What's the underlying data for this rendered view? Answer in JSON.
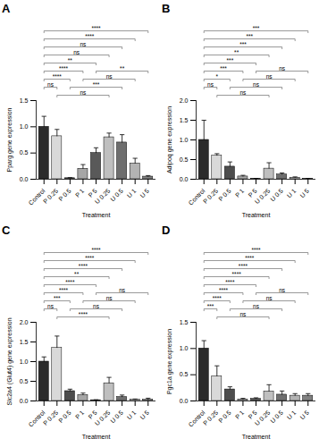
{
  "chart_data": [
    {
      "type": "bar",
      "title": "A",
      "categories": [
        "Control",
        "P 0.25",
        "P 0.5",
        "P 1",
        "P 5",
        "U 0.25",
        "U 0.5",
        "U 1",
        "U 5"
      ],
      "values": [
        1.0,
        0.82,
        0.02,
        0.2,
        0.5,
        0.8,
        0.7,
        0.3,
        0.05
      ],
      "errors": [
        0.2,
        0.13,
        0.01,
        0.08,
        0.1,
        0.08,
        0.15,
        0.1,
        0.02
      ],
      "colors": [
        "#2b2b2b",
        "#d9d9d9",
        "#4d4d4d",
        "#a6a6a6",
        "#595959",
        "#bfbfbf",
        "#6e6e6e",
        "#b3b3b3",
        "#808080"
      ],
      "ylim": [
        0,
        1.5
      ],
      "yticks": [
        {
          "value": 0,
          "label": "0.0"
        },
        0.5,
        {
          "value": 1,
          "label": "1.0"
        },
        1.5
      ],
      "x_label": "Treatment",
      "y_label": "Pparg gene expression",
      "comparisons": [
        {
          "from": "P 0.25",
          "to": "U 0.25",
          "label": "ns"
        },
        {
          "from": "P 0.5",
          "to": "U 0.5",
          "label": "***"
        },
        {
          "from": "P 1",
          "to": "U 1",
          "label": "ns"
        },
        {
          "from": "P 5",
          "to": "U 5",
          "label": "**"
        },
        {
          "from": "Control",
          "to": "P 0.25",
          "label": "ns"
        },
        {
          "from": "Control",
          "to": "P 0.5",
          "label": "****"
        },
        {
          "from": "Control",
          "to": "P 1",
          "label": "****"
        },
        {
          "from": "Control",
          "to": "P 5",
          "label": "**"
        },
        {
          "from": "Control",
          "to": "U 0.25",
          "label": "ns"
        },
        {
          "from": "Control",
          "to": "U 0.5",
          "label": "ns"
        },
        {
          "from": "Control",
          "to": "U 1",
          "label": "****"
        },
        {
          "from": "Control",
          "to": "U 5",
          "label": "****"
        }
      ]
    },
    {
      "type": "bar",
      "title": "B",
      "categories": [
        "Control",
        "P 0.25",
        "P 0.5",
        "P 1",
        "P 5",
        "U 0.25",
        "U 0.5",
        "U 1",
        "U 5"
      ],
      "values": [
        1.0,
        0.6,
        0.32,
        0.07,
        0.01,
        0.27,
        0.12,
        0.04,
        0.01
      ],
      "errors": [
        0.5,
        0.05,
        0.12,
        0.03,
        0.01,
        0.15,
        0.04,
        0.02,
        0.01
      ],
      "colors": [
        "#2b2b2b",
        "#d9d9d9",
        "#4d4d4d",
        "#a6a6a6",
        "#595959",
        "#bfbfbf",
        "#6e6e6e",
        "#b3b3b3",
        "#808080"
      ],
      "ylim": [
        0,
        2
      ],
      "yticks": [
        {
          "value": 0,
          "label": "0.0"
        },
        0.5,
        {
          "value": 1,
          "label": "1.0"
        },
        1.5,
        {
          "value": 2,
          "label": "2.0"
        }
      ],
      "x_label": "Treatment",
      "y_label": "Adipoq gene expression",
      "comparisons": [
        {
          "from": "P 0.25",
          "to": "U 0.25",
          "label": "ns"
        },
        {
          "from": "P 0.5",
          "to": "U 0.5",
          "label": "ns"
        },
        {
          "from": "P 1",
          "to": "U 1",
          "label": "ns"
        },
        {
          "from": "P 5",
          "to": "U 5",
          "label": "ns"
        },
        {
          "from": "Control",
          "to": "P 0.25",
          "label": "ns"
        },
        {
          "from": "Control",
          "to": "P 0.5",
          "label": "*"
        },
        {
          "from": "Control",
          "to": "P 1",
          "label": "***"
        },
        {
          "from": "Control",
          "to": "P 5",
          "label": "***"
        },
        {
          "from": "Control",
          "to": "U 0.25",
          "label": "**"
        },
        {
          "from": "Control",
          "to": "U 0.5",
          "label": "***"
        },
        {
          "from": "Control",
          "to": "U 1",
          "label": "***"
        },
        {
          "from": "Control",
          "to": "U 5",
          "label": "***"
        }
      ]
    },
    {
      "type": "bar",
      "title": "C",
      "categories": [
        "Control",
        "P 0.25",
        "P 0.5",
        "P 1",
        "P 5",
        "U 0.25",
        "U 0.5",
        "U 1",
        "U 5"
      ],
      "values": [
        1.0,
        1.35,
        0.25,
        0.15,
        0.02,
        0.45,
        0.1,
        0.03,
        0.03
      ],
      "errors": [
        0.12,
        0.3,
        0.05,
        0.05,
        0.01,
        0.15,
        0.05,
        0.02,
        0.04
      ],
      "colors": [
        "#2b2b2b",
        "#d9d9d9",
        "#4d4d4d",
        "#a6a6a6",
        "#595959",
        "#bfbfbf",
        "#6e6e6e",
        "#b3b3b3",
        "#808080"
      ],
      "ylim": [
        0,
        2
      ],
      "yticks": [
        {
          "value": 0,
          "label": "0.0"
        },
        0.5,
        {
          "value": 1,
          "label": "1.0"
        },
        1.5,
        {
          "value": 2,
          "label": "2.0"
        }
      ],
      "x_label": "Treatment",
      "y_label": "Slc2a4 (Glut4) gene expression",
      "comparisons": [
        {
          "from": "P 0.25",
          "to": "U 0.25",
          "label": "****"
        },
        {
          "from": "P 0.5",
          "to": "U 0.5",
          "label": "ns"
        },
        {
          "from": "P 1",
          "to": "U 1",
          "label": "ns"
        },
        {
          "from": "P 5",
          "to": "U 5",
          "label": "ns"
        },
        {
          "from": "Control",
          "to": "P 0.25",
          "label": "ns"
        },
        {
          "from": "Control",
          "to": "P 0.5",
          "label": "***"
        },
        {
          "from": "Control",
          "to": "P 1",
          "label": "****"
        },
        {
          "from": "Control",
          "to": "P 5",
          "label": "****"
        },
        {
          "from": "Control",
          "to": "U 0.25",
          "label": "**"
        },
        {
          "from": "Control",
          "to": "U 0.5",
          "label": "****"
        },
        {
          "from": "Control",
          "to": "U 1",
          "label": "****"
        },
        {
          "from": "Control",
          "to": "U 5",
          "label": "****"
        }
      ]
    },
    {
      "type": "bar",
      "title": "D",
      "categories": [
        "Control",
        "P 0.25",
        "P 0.5",
        "P 1",
        "P 5",
        "U 0.25",
        "U 0.5",
        "U 1",
        "U 5"
      ],
      "values": [
        1.0,
        0.47,
        0.22,
        0.03,
        0.04,
        0.18,
        0.12,
        0.1,
        0.1
      ],
      "errors": [
        0.15,
        0.2,
        0.05,
        0.02,
        0.02,
        0.13,
        0.07,
        0.04,
        0.04
      ],
      "colors": [
        "#2b2b2b",
        "#d9d9d9",
        "#4d4d4d",
        "#a6a6a6",
        "#595959",
        "#bfbfbf",
        "#6e6e6e",
        "#b3b3b3",
        "#808080"
      ],
      "ylim": [
        0,
        1.5
      ],
      "yticks": [
        {
          "value": 0,
          "label": "0.0"
        },
        0.5,
        {
          "value": 1,
          "label": "1.0"
        },
        1.5
      ],
      "x_label": "Treatment",
      "y_label": "Pgc1a gene expression",
      "comparisons": [
        {
          "from": "P 0.25",
          "to": "U 0.25",
          "label": "ns"
        },
        {
          "from": "P 0.5",
          "to": "U 0.5",
          "label": "ns"
        },
        {
          "from": "P 1",
          "to": "U 1",
          "label": "ns"
        },
        {
          "from": "P 5",
          "to": "U 5",
          "label": "ns"
        },
        {
          "from": "Control",
          "to": "P 0.25",
          "label": "***"
        },
        {
          "from": "Control",
          "to": "P 0.5",
          "label": "****"
        },
        {
          "from": "Control",
          "to": "P 1",
          "label": "****"
        },
        {
          "from": "Control",
          "to": "P 5",
          "label": "****"
        },
        {
          "from": "Control",
          "to": "U 0.25",
          "label": "****"
        },
        {
          "from": "Control",
          "to": "U 0.5",
          "label": "****"
        },
        {
          "from": "Control",
          "to": "U 1",
          "label": "****"
        },
        {
          "from": "Control",
          "to": "U 5",
          "label": "****"
        }
      ]
    }
  ]
}
